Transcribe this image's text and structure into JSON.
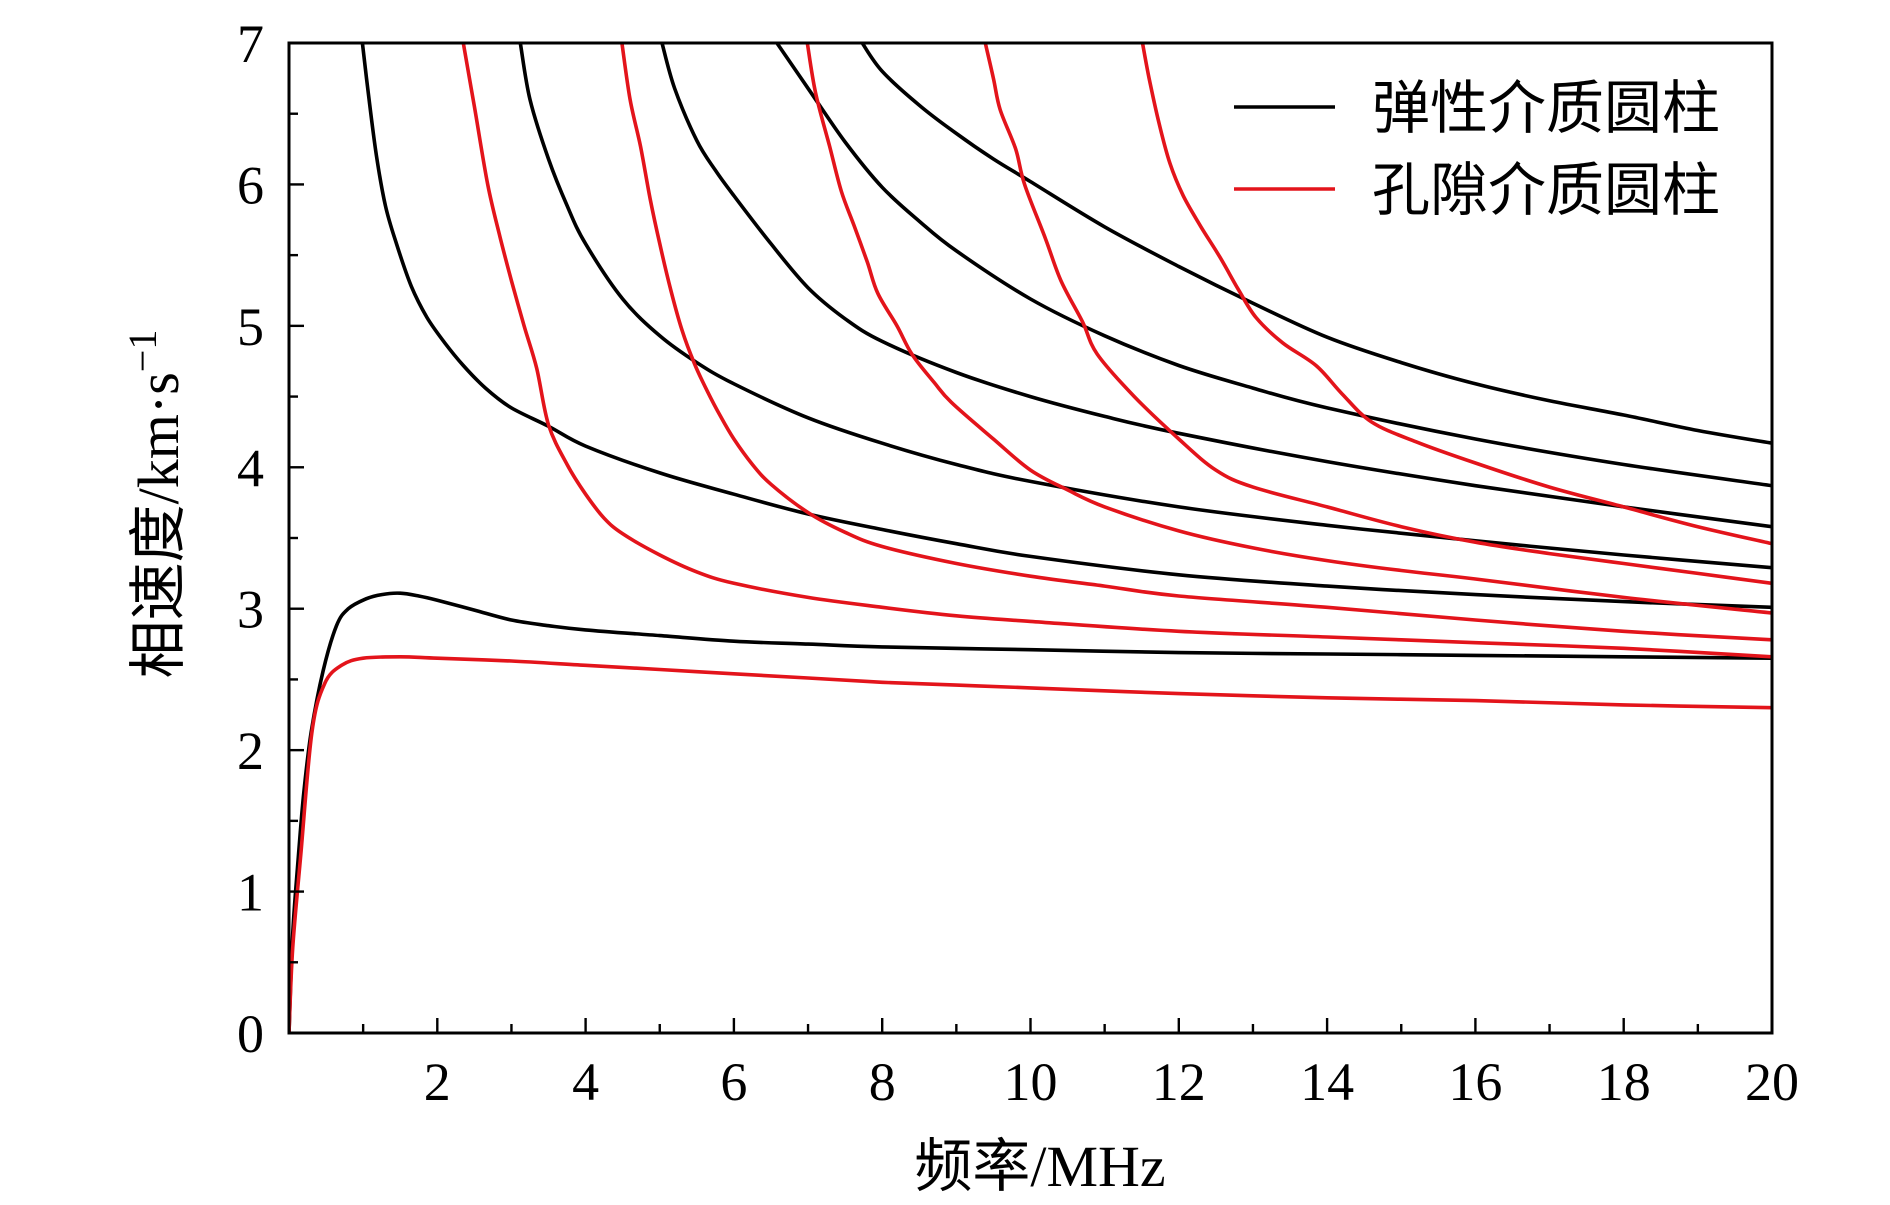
{
  "chart_data": {
    "type": "line",
    "xlabel": "频率/MHz",
    "ylabel": "相速度/km·s",
    "ylabel_exponent": "−1",
    "xlim": [
      0,
      20
    ],
    "ylim": [
      0,
      7
    ],
    "xticks": [
      2,
      4,
      6,
      8,
      10,
      12,
      14,
      16,
      18,
      20
    ],
    "xtick_labels": [
      "2",
      "4",
      "6",
      "8",
      "10",
      "12",
      "14",
      "16",
      "18",
      "20"
    ],
    "x_minor_step": 1,
    "yticks": [
      0,
      1,
      2,
      3,
      4,
      5,
      6,
      7
    ],
    "ytick_labels": [
      "0",
      "1",
      "2",
      "3",
      "4",
      "5",
      "6",
      "7"
    ],
    "y_minor_step": 0.5,
    "grid": false,
    "legend": {
      "placement": "top-right",
      "entries": [
        {
          "label": "弹性介质圆柱",
          "color": "#000000"
        },
        {
          "label": "孔隙介质圆柱",
          "color": "#e3141b"
        }
      ]
    },
    "series": [
      {
        "name": "弹性介质圆柱",
        "color": "#000000",
        "curves": [
          [
            [
              0,
              0
            ],
            [
              0.05,
              0.7
            ],
            [
              0.13,
              1.27
            ],
            [
              0.2,
              1.7
            ],
            [
              0.3,
              2.13
            ],
            [
              0.46,
              2.56
            ],
            [
              0.64,
              2.88
            ],
            [
              0.8,
              3.0
            ],
            [
              1.04,
              3.07
            ],
            [
              1.25,
              3.1
            ],
            [
              1.5,
              3.11
            ],
            [
              1.75,
              3.09
            ],
            [
              2,
              3.06
            ],
            [
              2.5,
              2.99
            ],
            [
              3,
              2.92
            ],
            [
              3.5,
              2.88
            ],
            [
              4,
              2.85
            ],
            [
              5,
              2.81
            ],
            [
              6,
              2.77
            ],
            [
              7,
              2.75
            ],
            [
              8,
              2.73
            ],
            [
              10,
              2.71
            ],
            [
              12,
              2.69
            ],
            [
              14,
              2.68
            ],
            [
              16,
              2.67
            ],
            [
              18,
              2.66
            ],
            [
              20,
              2.65
            ]
          ],
          [
            [
              0.99,
              7
            ],
            [
              1.08,
              6.6
            ],
            [
              1.18,
              6.2
            ],
            [
              1.3,
              5.85
            ],
            [
              1.45,
              5.58
            ],
            [
              1.65,
              5.28
            ],
            [
              1.86,
              5.06
            ],
            [
              2.1,
              4.88
            ],
            [
              2.35,
              4.72
            ],
            [
              2.65,
              4.56
            ],
            [
              3,
              4.42
            ],
            [
              3.5,
              4.29
            ],
            [
              4,
              4.15
            ],
            [
              5,
              3.96
            ],
            [
              6,
              3.81
            ],
            [
              7,
              3.67
            ],
            [
              8,
              3.56
            ],
            [
              9,
              3.46
            ],
            [
              10,
              3.37
            ],
            [
              12,
              3.24
            ],
            [
              14,
              3.16
            ],
            [
              16,
              3.1
            ],
            [
              18,
              3.05
            ],
            [
              20,
              3.01
            ]
          ],
          [
            [
              3.12,
              7
            ],
            [
              3.25,
              6.6
            ],
            [
              3.5,
              6.18
            ],
            [
              3.75,
              5.85
            ],
            [
              4,
              5.58
            ],
            [
              4.5,
              5.19
            ],
            [
              5,
              4.93
            ],
            [
              5.5,
              4.74
            ],
            [
              6,
              4.59
            ],
            [
              7,
              4.35
            ],
            [
              8,
              4.17
            ],
            [
              9,
              4.02
            ],
            [
              10,
              3.9
            ],
            [
              12,
              3.72
            ],
            [
              14,
              3.59
            ],
            [
              16,
              3.48
            ],
            [
              18,
              3.38
            ],
            [
              20,
              3.29
            ]
          ],
          [
            [
              5.03,
              7
            ],
            [
              5.2,
              6.68
            ],
            [
              5.5,
              6.31
            ],
            [
              5.75,
              6.1
            ],
            [
              6,
              5.92
            ],
            [
              6.5,
              5.58
            ],
            [
              7,
              5.27
            ],
            [
              7.5,
              5.05
            ],
            [
              8,
              4.89
            ],
            [
              9,
              4.67
            ],
            [
              10,
              4.5
            ],
            [
              11,
              4.36
            ],
            [
              12,
              4.24
            ],
            [
              14,
              4.04
            ],
            [
              16,
              3.87
            ],
            [
              18,
              3.72
            ],
            [
              20,
              3.58
            ]
          ],
          [
            [
              6.58,
              7
            ],
            [
              7,
              6.68
            ],
            [
              7.5,
              6.3
            ],
            [
              8,
              5.98
            ],
            [
              8.5,
              5.74
            ],
            [
              9,
              5.53
            ],
            [
              10,
              5.19
            ],
            [
              11,
              4.93
            ],
            [
              12,
              4.72
            ],
            [
              13,
              4.56
            ],
            [
              14,
              4.42
            ],
            [
              16,
              4.2
            ],
            [
              18,
              4.02
            ],
            [
              20,
              3.87
            ]
          ],
          [
            [
              7.73,
              7
            ],
            [
              8,
              6.8
            ],
            [
              8.5,
              6.56
            ],
            [
              9,
              6.36
            ],
            [
              9.5,
              6.18
            ],
            [
              10,
              6.02
            ],
            [
              11,
              5.7
            ],
            [
              12,
              5.42
            ],
            [
              13,
              5.16
            ],
            [
              14,
              4.92
            ],
            [
              15,
              4.74
            ],
            [
              16,
              4.59
            ],
            [
              17,
              4.47
            ],
            [
              18,
              4.37
            ],
            [
              19,
              4.26
            ],
            [
              20,
              4.17
            ]
          ]
        ]
      },
      {
        "name": "孔隙介质圆柱",
        "color": "#e3141b",
        "curves": [
          [
            [
              0,
              0
            ],
            [
              0.05,
              0.6
            ],
            [
              0.16,
              1.27
            ],
            [
              0.31,
              2.13
            ],
            [
              0.48,
              2.47
            ],
            [
              0.71,
              2.6
            ],
            [
              1,
              2.65
            ],
            [
              1.5,
              2.66
            ],
            [
              2,
              2.65
            ],
            [
              3,
              2.63
            ],
            [
              4,
              2.6
            ],
            [
              5,
              2.57
            ],
            [
              6,
              2.54
            ],
            [
              7,
              2.51
            ],
            [
              8,
              2.48
            ],
            [
              9,
              2.46
            ],
            [
              10,
              2.44
            ],
            [
              12,
              2.4
            ],
            [
              14,
              2.37
            ],
            [
              16,
              2.35
            ],
            [
              18,
              2.32
            ],
            [
              20,
              2.3
            ]
          ],
          [
            [
              2.35,
              7
            ],
            [
              2.5,
              6.55
            ],
            [
              2.68,
              6.0
            ],
            [
              2.85,
              5.62
            ],
            [
              3,
              5.32
            ],
            [
              3.17,
              5.0
            ],
            [
              3.34,
              4.7
            ],
            [
              3.5,
              4.3
            ],
            [
              3.75,
              4.02
            ],
            [
              4,
              3.81
            ],
            [
              4.25,
              3.64
            ],
            [
              4.5,
              3.53
            ],
            [
              5,
              3.38
            ],
            [
              5.5,
              3.26
            ],
            [
              6,
              3.18
            ],
            [
              7,
              3.08
            ],
            [
              8,
              3.01
            ],
            [
              9,
              2.95
            ],
            [
              10,
              2.91
            ],
            [
              12,
              2.84
            ],
            [
              14,
              2.8
            ],
            [
              16,
              2.76
            ],
            [
              18,
              2.72
            ],
            [
              20,
              2.66
            ]
          ],
          [
            [
              4.49,
              7
            ],
            [
              4.6,
              6.6
            ],
            [
              4.74,
              6.27
            ],
            [
              4.87,
              5.9
            ],
            [
              5,
              5.58
            ],
            [
              5.15,
              5.25
            ],
            [
              5.3,
              4.97
            ],
            [
              5.47,
              4.73
            ],
            [
              5.64,
              4.54
            ],
            [
              5.82,
              4.36
            ],
            [
              6,
              4.2
            ],
            [
              6.25,
              4.02
            ],
            [
              6.5,
              3.88
            ],
            [
              7,
              3.68
            ],
            [
              7.5,
              3.54
            ],
            [
              8,
              3.44
            ],
            [
              9,
              3.32
            ],
            [
              10,
              3.23
            ],
            [
              11,
              3.16
            ],
            [
              12,
              3.09
            ],
            [
              14,
              3.01
            ],
            [
              16,
              2.92
            ],
            [
              18,
              2.84
            ],
            [
              20,
              2.78
            ]
          ],
          [
            [
              6.99,
              7
            ],
            [
              7.1,
              6.65
            ],
            [
              7.29,
              6.27
            ],
            [
              7.45,
              5.95
            ],
            [
              7.62,
              5.71
            ],
            [
              7.8,
              5.45
            ],
            [
              7.94,
              5.23
            ],
            [
              8.2,
              5.0
            ],
            [
              8.4,
              4.8
            ],
            [
              8.7,
              4.6
            ],
            [
              8.93,
              4.46
            ],
            [
              9.5,
              4.2
            ],
            [
              10,
              3.98
            ],
            [
              10.5,
              3.84
            ],
            [
              11,
              3.72
            ],
            [
              12,
              3.55
            ],
            [
              13,
              3.43
            ],
            [
              14,
              3.34
            ],
            [
              15,
              3.27
            ],
            [
              16,
              3.21
            ],
            [
              18,
              3.08
            ],
            [
              20,
              2.97
            ]
          ],
          [
            [
              9.39,
              7
            ],
            [
              9.5,
              6.75
            ],
            [
              9.59,
              6.53
            ],
            [
              9.8,
              6.25
            ],
            [
              9.92,
              6.0
            ],
            [
              10.2,
              5.62
            ],
            [
              10.41,
              5.32
            ],
            [
              10.7,
              5.03
            ],
            [
              10.9,
              4.8
            ],
            [
              11.4,
              4.5
            ],
            [
              12,
              4.2
            ],
            [
              12.5,
              3.98
            ],
            [
              13,
              3.86
            ],
            [
              14,
              3.72
            ],
            [
              15,
              3.58
            ],
            [
              16,
              3.47
            ],
            [
              17,
              3.39
            ],
            [
              18,
              3.32
            ],
            [
              19,
              3.25
            ],
            [
              20,
              3.18
            ]
          ],
          [
            [
              11.51,
              7
            ],
            [
              11.6,
              6.75
            ],
            [
              11.73,
              6.44
            ],
            [
              11.88,
              6.15
            ],
            [
              12.06,
              5.92
            ],
            [
              12.3,
              5.7
            ],
            [
              12.55,
              5.49
            ],
            [
              12.8,
              5.26
            ],
            [
              13.04,
              5.06
            ],
            [
              13.4,
              4.88
            ],
            [
              13.85,
              4.72
            ],
            [
              14.2,
              4.52
            ],
            [
              14.6,
              4.32
            ],
            [
              15.2,
              4.18
            ],
            [
              16,
              4.03
            ],
            [
              17,
              3.86
            ],
            [
              18,
              3.72
            ],
            [
              19,
              3.58
            ],
            [
              20,
              3.46
            ]
          ]
        ]
      }
    ]
  }
}
